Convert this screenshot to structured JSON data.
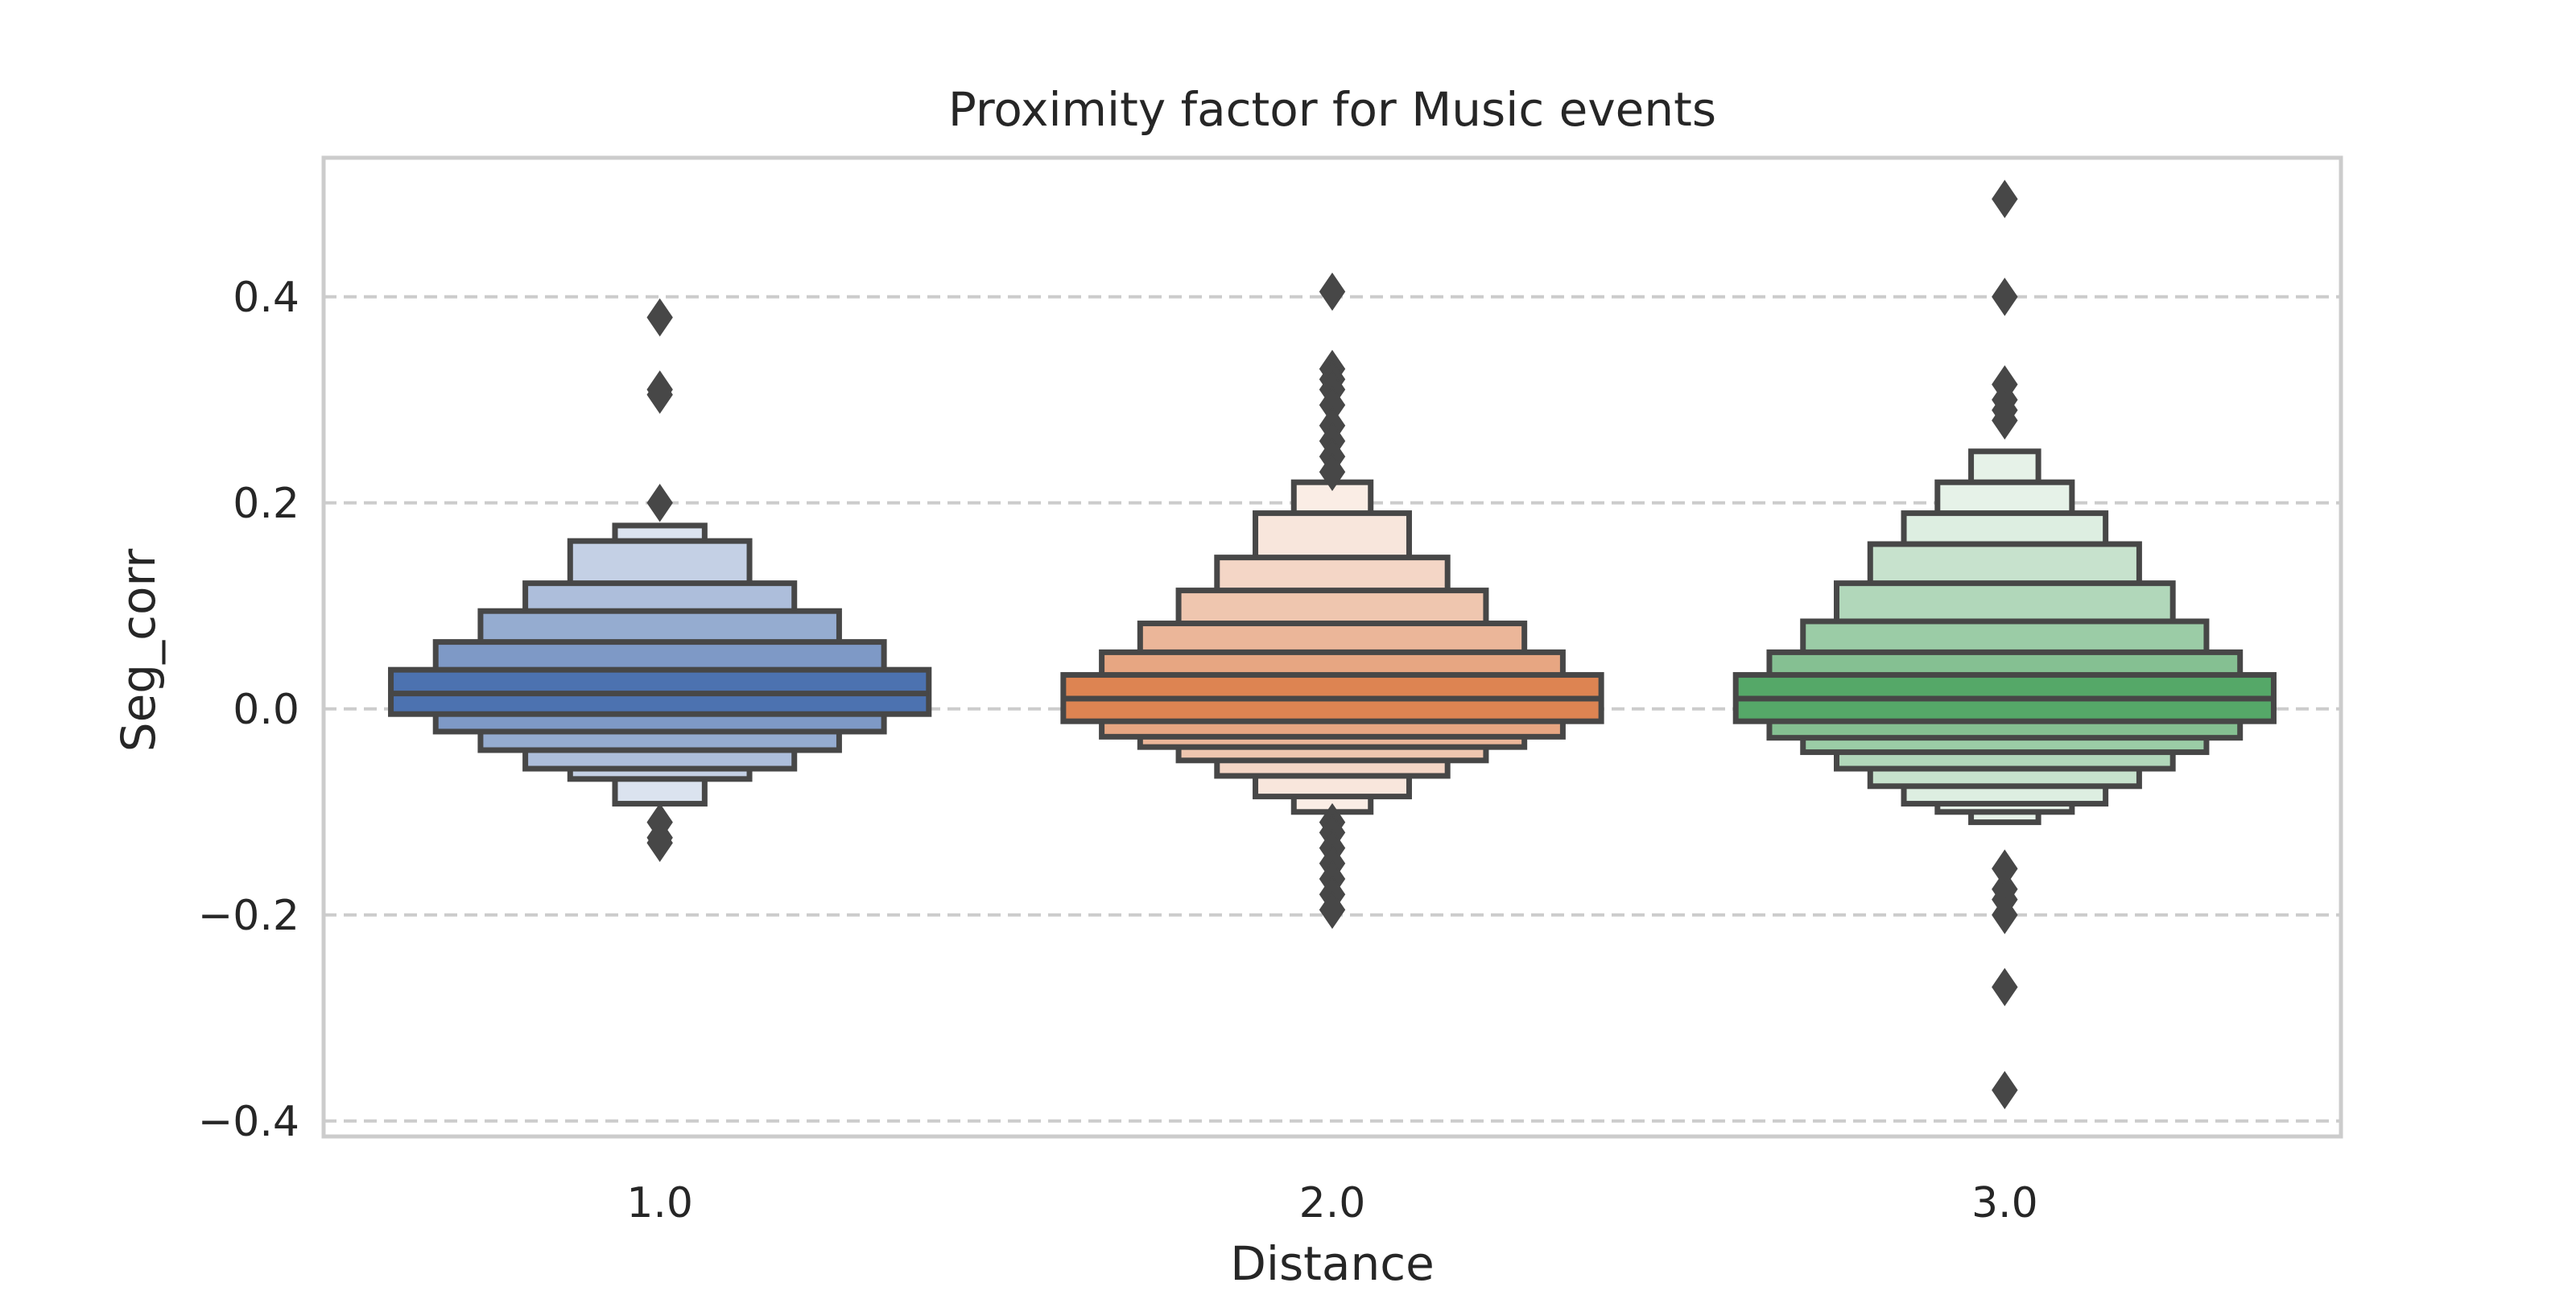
{
  "chart_data": {
    "type": "boxen",
    "title": "Proximity factor for Music events",
    "xlabel": "Distance",
    "ylabel": "Seg_corr",
    "ylim": [
      -0.415,
      0.535
    ],
    "yticks": [
      0.4,
      0.2,
      0.0,
      -0.2,
      -0.4
    ],
    "ytick_labels": [
      "0.4",
      "0.2",
      "0.0",
      "−0.2",
      "−0.4"
    ],
    "categories": [
      "1.0",
      "2.0",
      "3.0"
    ],
    "grid": {
      "y": true,
      "x": false,
      "style": "dashed",
      "color": "#cccccc"
    },
    "colors": {
      "series": [
        "#4c72b0",
        "#dd8452",
        "#55a868"
      ],
      "edge": "#474747",
      "spine": "#cccccc"
    },
    "series": [
      {
        "category": "1.0",
        "median": 0.015,
        "levels": [
          {
            "low": -0.005,
            "high": 0.038
          },
          {
            "low": -0.022,
            "high": 0.065
          },
          {
            "low": -0.04,
            "high": 0.095
          },
          {
            "low": -0.058,
            "high": 0.122
          },
          {
            "low": -0.068,
            "high": 0.163
          },
          {
            "low": -0.092,
            "high": 0.178
          }
        ],
        "outliers": [
          0.38,
          0.31,
          0.305,
          0.2,
          -0.11,
          -0.125,
          -0.13
        ]
      },
      {
        "category": "2.0",
        "median": 0.01,
        "levels": [
          {
            "low": -0.012,
            "high": 0.033
          },
          {
            "low": -0.027,
            "high": 0.055
          },
          {
            "low": -0.037,
            "high": 0.083
          },
          {
            "low": -0.05,
            "high": 0.115
          },
          {
            "low": -0.065,
            "high": 0.147
          },
          {
            "low": -0.085,
            "high": 0.19
          },
          {
            "low": -0.1,
            "high": 0.22
          }
        ],
        "outliers": [
          0.405,
          0.33,
          0.32,
          0.31,
          0.295,
          0.275,
          0.26,
          0.245,
          0.23,
          -0.11,
          -0.12,
          -0.135,
          -0.15,
          -0.165,
          -0.18,
          -0.195
        ]
      },
      {
        "category": "3.0",
        "median": 0.01,
        "levels": [
          {
            "low": -0.012,
            "high": 0.033
          },
          {
            "low": -0.028,
            "high": 0.055
          },
          {
            "low": -0.042,
            "high": 0.085
          },
          {
            "low": -0.058,
            "high": 0.122
          },
          {
            "low": -0.075,
            "high": 0.16
          },
          {
            "low": -0.092,
            "high": 0.19
          },
          {
            "low": -0.1,
            "high": 0.22
          },
          {
            "low": -0.11,
            "high": 0.25
          }
        ],
        "outliers": [
          0.495,
          0.4,
          0.315,
          0.3,
          0.29,
          0.28,
          -0.155,
          -0.175,
          -0.185,
          -0.2,
          -0.27,
          -0.37
        ]
      }
    ]
  }
}
